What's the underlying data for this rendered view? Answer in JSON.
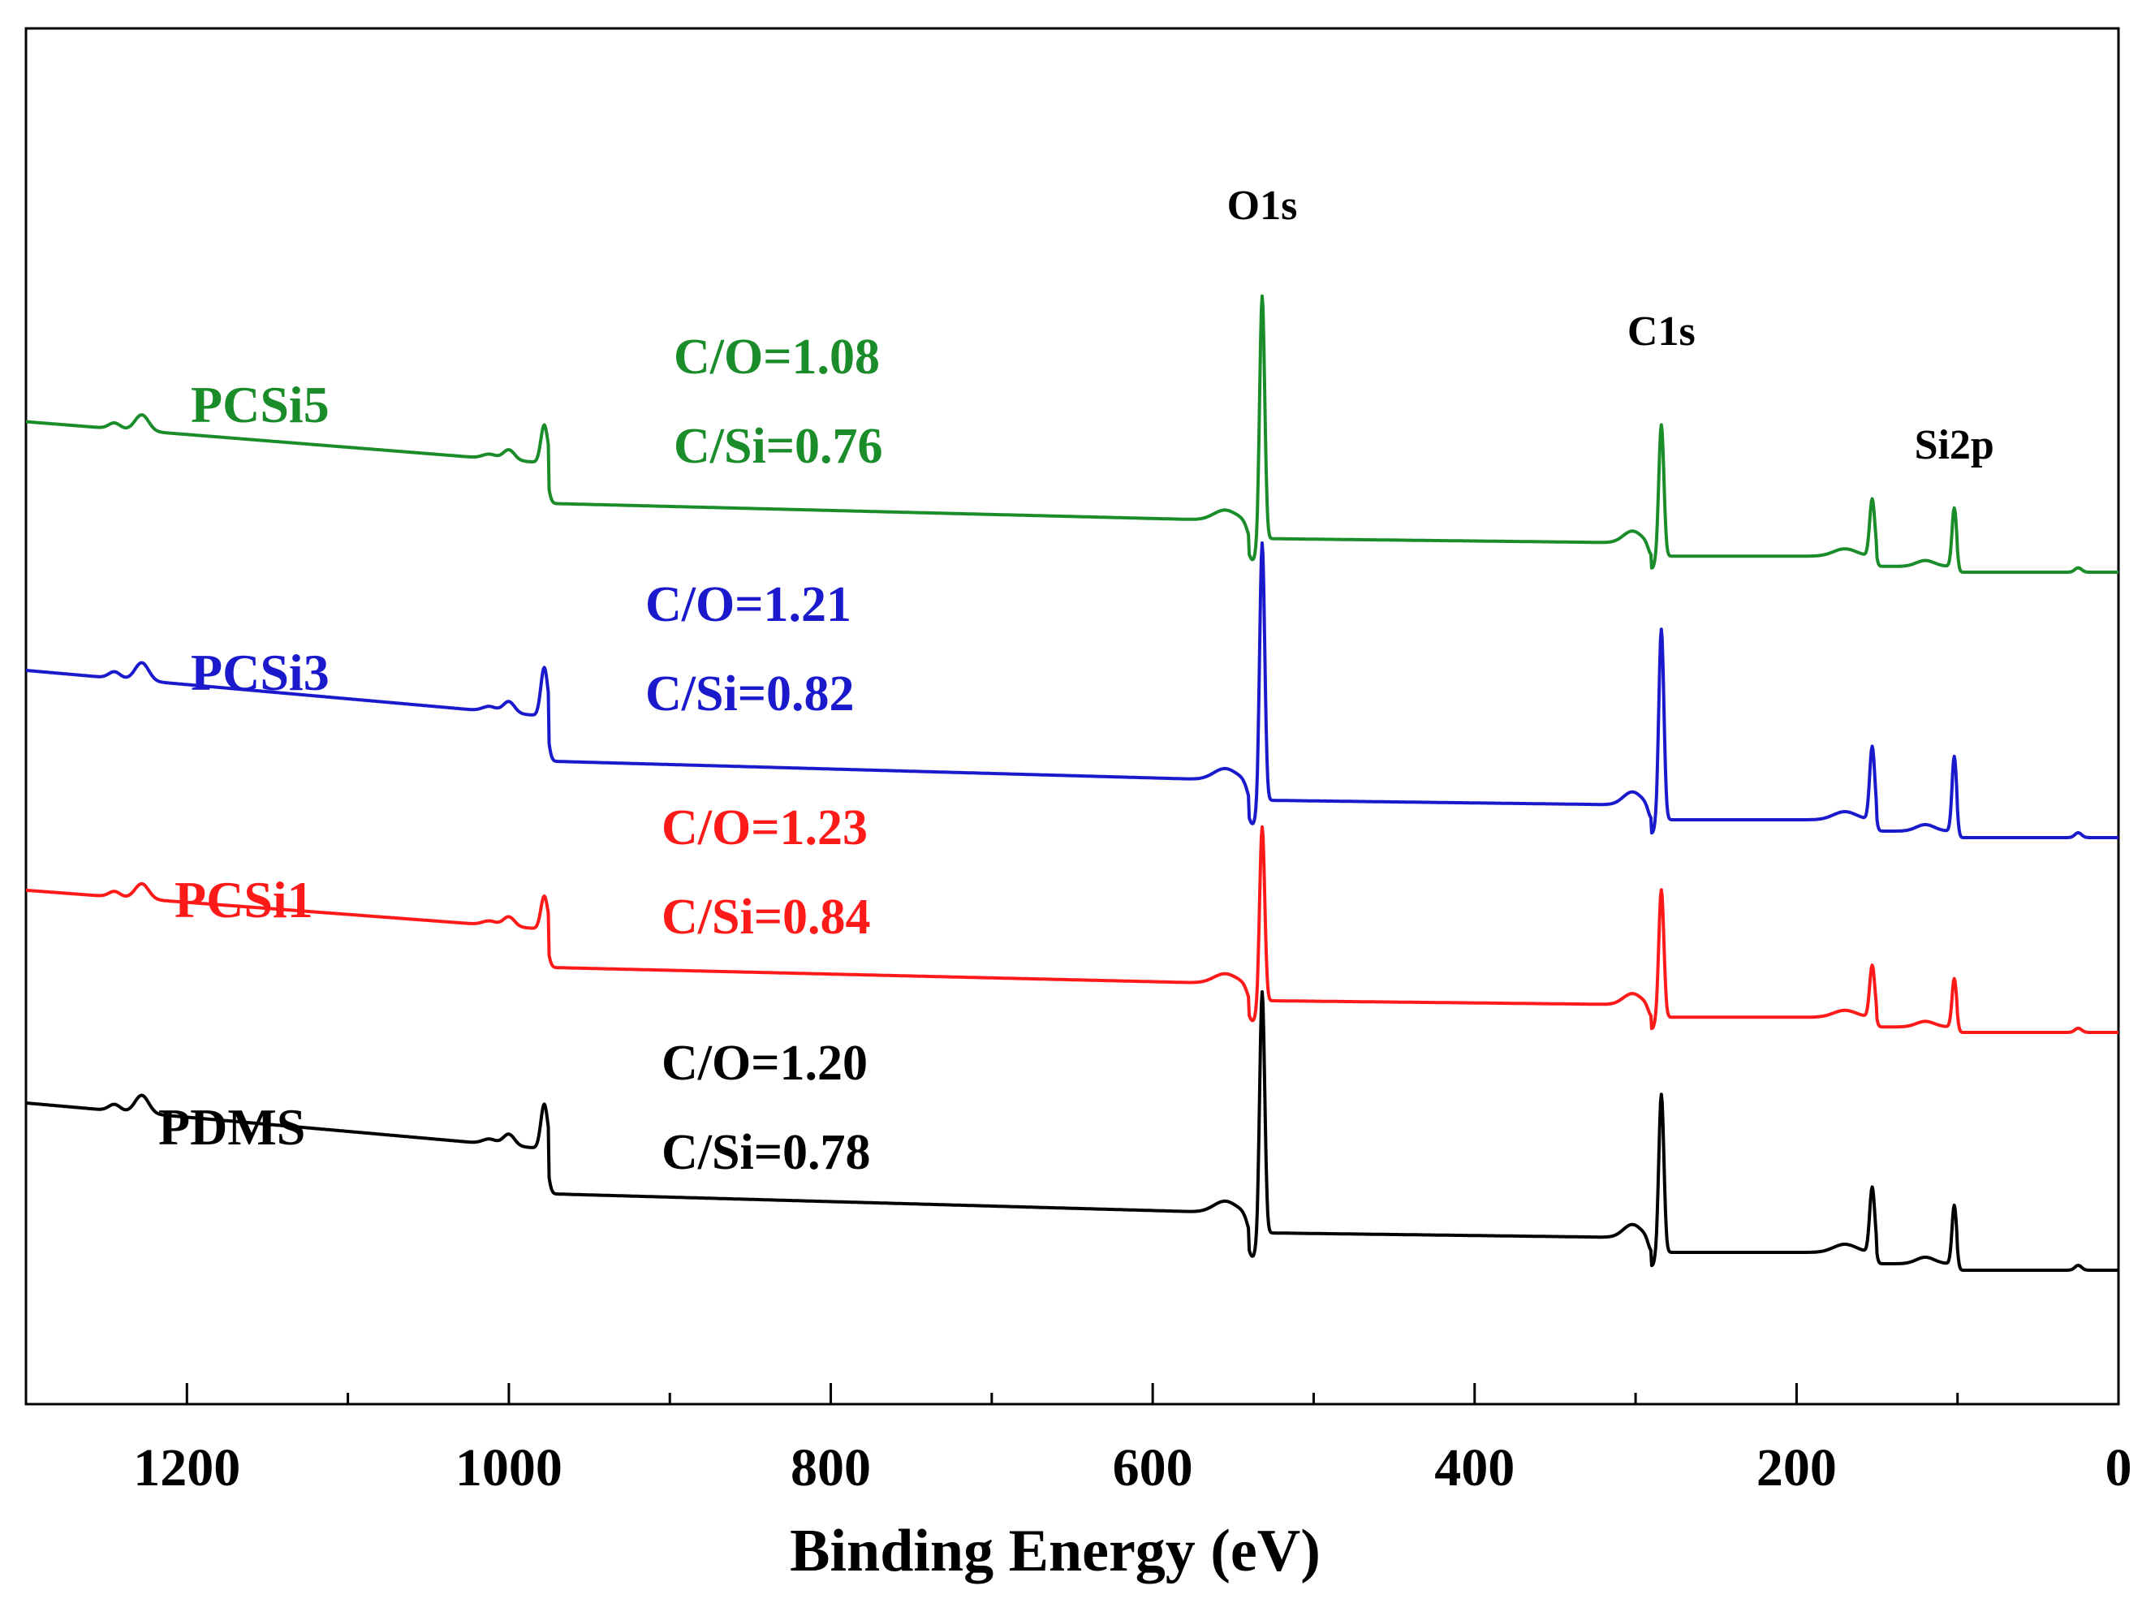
{
  "chart_data": {
    "type": "line",
    "title": "",
    "xlabel": "Binding Energy (eV)",
    "ylabel": "",
    "xlim": [
      1300,
      0
    ],
    "x_reversed": true,
    "yticks_shown": false,
    "xticks": [
      {
        "value": 1200,
        "label": "1200"
      },
      {
        "value": 1000,
        "label": "1000"
      },
      {
        "value": 800,
        "label": "800"
      },
      {
        "value": 600,
        "label": "600"
      },
      {
        "value": 400,
        "label": "400"
      },
      {
        "value": 200,
        "label": "200"
      },
      {
        "value": 0,
        "label": "0"
      }
    ],
    "peak_labels": [
      {
        "text": "O1s",
        "x": 532
      },
      {
        "text": "C1s",
        "x": 284
      },
      {
        "text": "Si2p",
        "x": 102
      }
    ],
    "series": [
      {
        "name": "PDMS",
        "color": "#000000",
        "ratio_co": "C/O=1.20",
        "ratio_csi": "C/Si=0.78",
        "offset": 0
      },
      {
        "name": "PCSi1",
        "color": "#ff1a1a",
        "ratio_co": "C/O=1.23",
        "ratio_csi": "C/Si=0.84",
        "offset": 1
      },
      {
        "name": "PCSi3",
        "color": "#1a1acc",
        "ratio_co": "C/O=1.21",
        "ratio_csi": "C/Si=0.82",
        "offset": 2
      },
      {
        "name": "PCSi5",
        "color": "#1a8c2a",
        "ratio_co": "C/O=1.08",
        "ratio_csi": "C/Si=0.76",
        "offset": 3
      }
    ]
  }
}
